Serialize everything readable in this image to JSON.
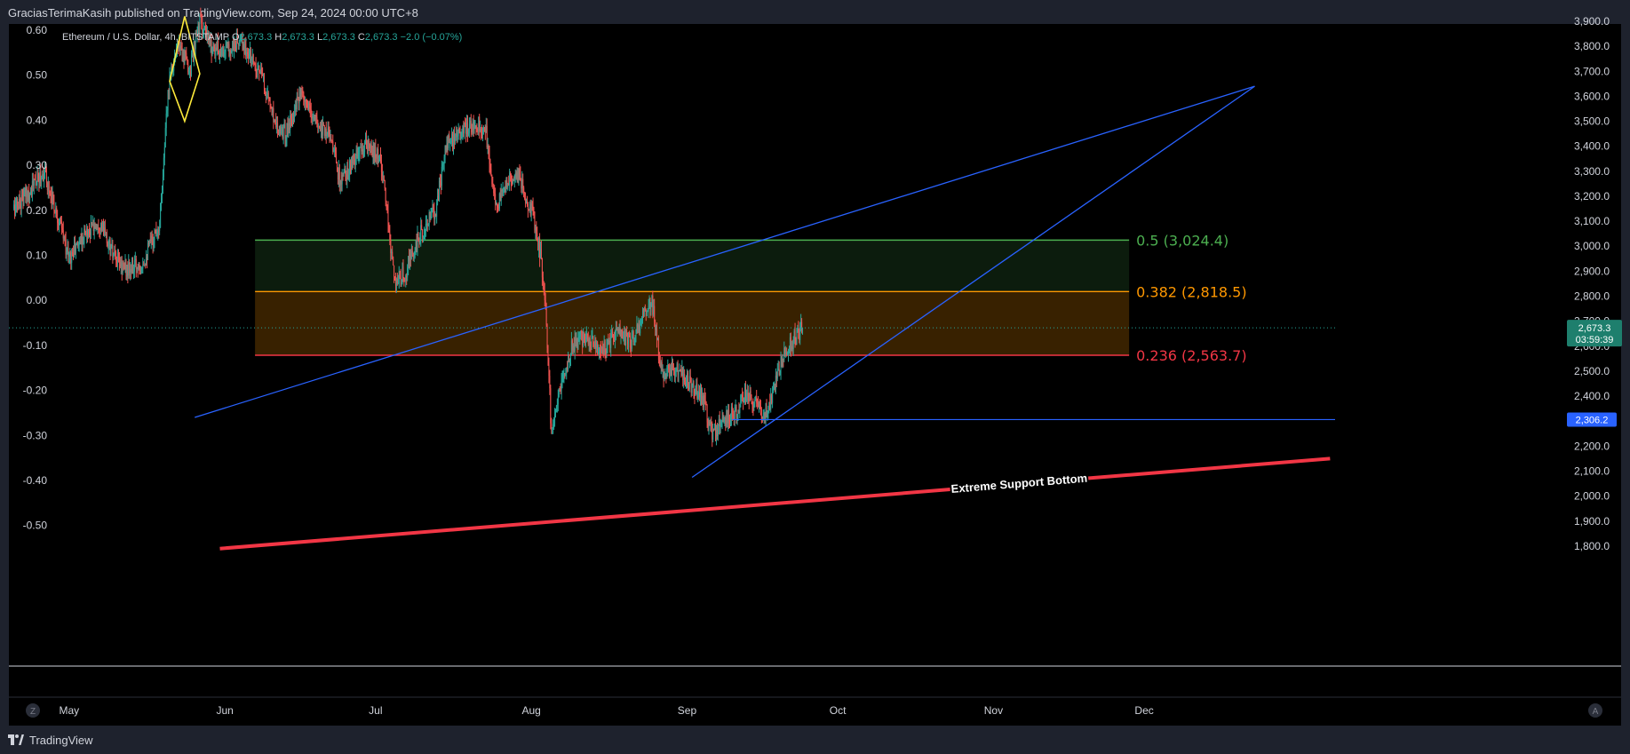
{
  "header": {
    "publish_line": "GraciasTerimaKasih published on TradingView.com, Sep 24, 2024 00:00 UTC+8"
  },
  "footer": {
    "brand": "TradingView"
  },
  "legend": {
    "symbol": "Ethereum / U.S. Dollar, 4h, BITSTAMP",
    "o_label": "O",
    "o_value": "2,673.3",
    "h_label": "H",
    "h_value": "2,673.3",
    "l_label": "L",
    "l_value": "2,673.3",
    "c_label": "C",
    "c_value": "2,673.3",
    "change": "−2.0 (−0.07%)"
  },
  "price_badge": {
    "price": "2,673.3",
    "countdown": "03:59:39"
  },
  "level_badge": {
    "price": "2,306.2"
  },
  "corner_buttons": {
    "left": "Z",
    "right": "A"
  },
  "fib_labels": [
    {
      "text": "0.5 (3,024.4)",
      "color": "#4caf50"
    },
    {
      "text": "0.382 (2,818.5)",
      "color": "#ff9800"
    },
    {
      "text": "0.236 (2,563.7)",
      "color": "#f23645"
    }
  ],
  "annotation": "Extreme Support Bottom",
  "colors": {
    "up": "#26a69a",
    "down": "#ef5350",
    "trendline": "#2962ff",
    "support": "#f23645",
    "pattern": "#ffeb3b",
    "badge": "#1e7f6d",
    "level_badge": "#2962ff"
  },
  "chart_data": {
    "type": "candlestick",
    "symbol": "Ethereum / U.S. Dollar",
    "interval": "4h",
    "exchange": "BITSTAMP",
    "y_right_label_ticks": [
      "3,900.0",
      "3,800.0",
      "3,700.0",
      "3,600.0",
      "3,500.0",
      "3,400.0",
      "3,300.0",
      "3,200.0",
      "3,100.0",
      "3,000.0",
      "2,900.0",
      "2,800.0",
      "2,700.0",
      "2,600.0",
      "2,500.0",
      "2,400.0",
      "2,300.0",
      "2,200.0",
      "2,100.0",
      "2,000.0",
      "1,900.0",
      "1,800.0"
    ],
    "y_right_values": [
      3900,
      3800,
      3700,
      3600,
      3500,
      3400,
      3300,
      3200,
      3100,
      3000,
      2900,
      2800,
      2700,
      2600,
      2500,
      2400,
      2300,
      2200,
      2100,
      2000,
      1900,
      1800
    ],
    "y_left_label_ticks": [
      "0.60",
      "0.50",
      "0.40",
      "0.30",
      "0.20",
      "0.10",
      "0.00",
      "-0.10",
      "-0.20",
      "-0.30",
      "-0.40",
      "-0.50"
    ],
    "y_left_values": [
      0.6,
      0.5,
      0.4,
      0.3,
      0.2,
      0.1,
      0.0,
      -0.1,
      -0.2,
      -0.3,
      -0.4,
      -0.5
    ],
    "x_ticks": [
      {
        "label": "May",
        "date": "2024-05-01"
      },
      {
        "label": "Jun",
        "date": "2024-06-01"
      },
      {
        "label": "Jul",
        "date": "2024-07-01"
      },
      {
        "label": "Aug",
        "date": "2024-08-01"
      },
      {
        "label": "Sep",
        "date": "2024-09-01"
      },
      {
        "label": "Oct",
        "date": "2024-10-01"
      },
      {
        "label": "Nov",
        "date": "2024-11-01"
      },
      {
        "label": "Dec",
        "date": "2024-12-01"
      }
    ],
    "x_range": [
      "2024-04-19",
      "2025-01-08"
    ],
    "y_range": [
      1790,
      3955
    ],
    "last_price": 2673.3,
    "fib_levels": [
      {
        "ratio": 0.5,
        "price": 3024.4,
        "color": "#4caf50",
        "zone_color": "rgba(76,175,80,0.16)"
      },
      {
        "ratio": 0.382,
        "price": 2818.5,
        "color": "#ff9800",
        "zone_color": "rgba(255,152,0,0.22)"
      },
      {
        "ratio": 0.236,
        "price": 2563.7,
        "color": "#f23645"
      }
    ],
    "fib_range": [
      "2024-06-07",
      "2024-11-28"
    ],
    "horizontal_level": {
      "price": 2306.2,
      "from": "2024-09-10"
    },
    "price_path": [
      [
        "2024-04-20",
        3150
      ],
      [
        "2024-04-23",
        3220
      ],
      [
        "2024-04-26",
        3300
      ],
      [
        "2024-04-29",
        3100
      ],
      [
        "2024-05-01",
        2950
      ],
      [
        "2024-05-04",
        3050
      ],
      [
        "2024-05-07",
        3100
      ],
      [
        "2024-05-10",
        2950
      ],
      [
        "2024-05-13",
        2900
      ],
      [
        "2024-05-16",
        2950
      ],
      [
        "2024-05-19",
        3100
      ],
      [
        "2024-05-20",
        3400
      ],
      [
        "2024-05-21",
        3700
      ],
      [
        "2024-05-23",
        3800
      ],
      [
        "2024-05-25",
        3700
      ],
      [
        "2024-05-27",
        3900
      ],
      [
        "2024-05-29",
        3800
      ],
      [
        "2024-06-01",
        3780
      ],
      [
        "2024-06-04",
        3820
      ],
      [
        "2024-06-06",
        3760
      ],
      [
        "2024-06-08",
        3700
      ],
      [
        "2024-06-11",
        3500
      ],
      [
        "2024-06-13",
        3450
      ],
      [
        "2024-06-16",
        3600
      ],
      [
        "2024-06-19",
        3500
      ],
      [
        "2024-06-22",
        3450
      ],
      [
        "2024-06-24",
        3250
      ],
      [
        "2024-06-27",
        3350
      ],
      [
        "2024-06-29",
        3400
      ],
      [
        "2024-07-02",
        3350
      ],
      [
        "2024-07-04",
        3000
      ],
      [
        "2024-07-05",
        2850
      ],
      [
        "2024-07-07",
        2900
      ],
      [
        "2024-07-10",
        3050
      ],
      [
        "2024-07-13",
        3150
      ],
      [
        "2024-07-15",
        3400
      ],
      [
        "2024-07-18",
        3450
      ],
      [
        "2024-07-21",
        3500
      ],
      [
        "2024-07-23",
        3450
      ],
      [
        "2024-07-25",
        3150
      ],
      [
        "2024-07-27",
        3250
      ],
      [
        "2024-07-29",
        3300
      ],
      [
        "2024-08-01",
        3150
      ],
      [
        "2024-08-03",
        2950
      ],
      [
        "2024-08-04",
        2700
      ],
      [
        "2024-08-05",
        2250
      ],
      [
        "2024-08-07",
        2450
      ],
      [
        "2024-08-09",
        2600
      ],
      [
        "2024-08-12",
        2650
      ],
      [
        "2024-08-15",
        2580
      ],
      [
        "2024-08-18",
        2650
      ],
      [
        "2024-08-21",
        2620
      ],
      [
        "2024-08-24",
        2750
      ],
      [
        "2024-08-25",
        2780
      ],
      [
        "2024-08-27",
        2480
      ],
      [
        "2024-08-29",
        2520
      ],
      [
        "2024-09-01",
        2460
      ],
      [
        "2024-09-04",
        2400
      ],
      [
        "2024-09-06",
        2250
      ],
      [
        "2024-09-08",
        2300
      ],
      [
        "2024-09-11",
        2350
      ],
      [
        "2024-09-13",
        2420
      ],
      [
        "2024-09-15",
        2360
      ],
      [
        "2024-09-16",
        2300
      ],
      [
        "2024-09-18",
        2400
      ],
      [
        "2024-09-20",
        2550
      ],
      [
        "2024-09-22",
        2620
      ],
      [
        "2024-09-24",
        2673
      ]
    ],
    "trendlines": [
      {
        "name": "upper",
        "from": [
          "2024-05-26",
          2315
        ],
        "to": [
          "2024-12-23",
          3640
        ]
      },
      {
        "name": "lower",
        "from": [
          "2024-09-02",
          2075
        ],
        "to": [
          "2024-12-23",
          3640
        ]
      }
    ],
    "support_line": {
      "label": "Extreme Support Bottom",
      "from": [
        "2024-05-31",
        1790
      ],
      "to": [
        "2025-01-07",
        2150
      ]
    },
    "pattern": {
      "points": [
        [
          "2024-05-21",
          3660
        ],
        [
          "2024-05-24",
          3920
        ],
        [
          "2024-05-27",
          3690
        ],
        [
          "2024-05-24",
          3500
        ]
      ]
    }
  }
}
